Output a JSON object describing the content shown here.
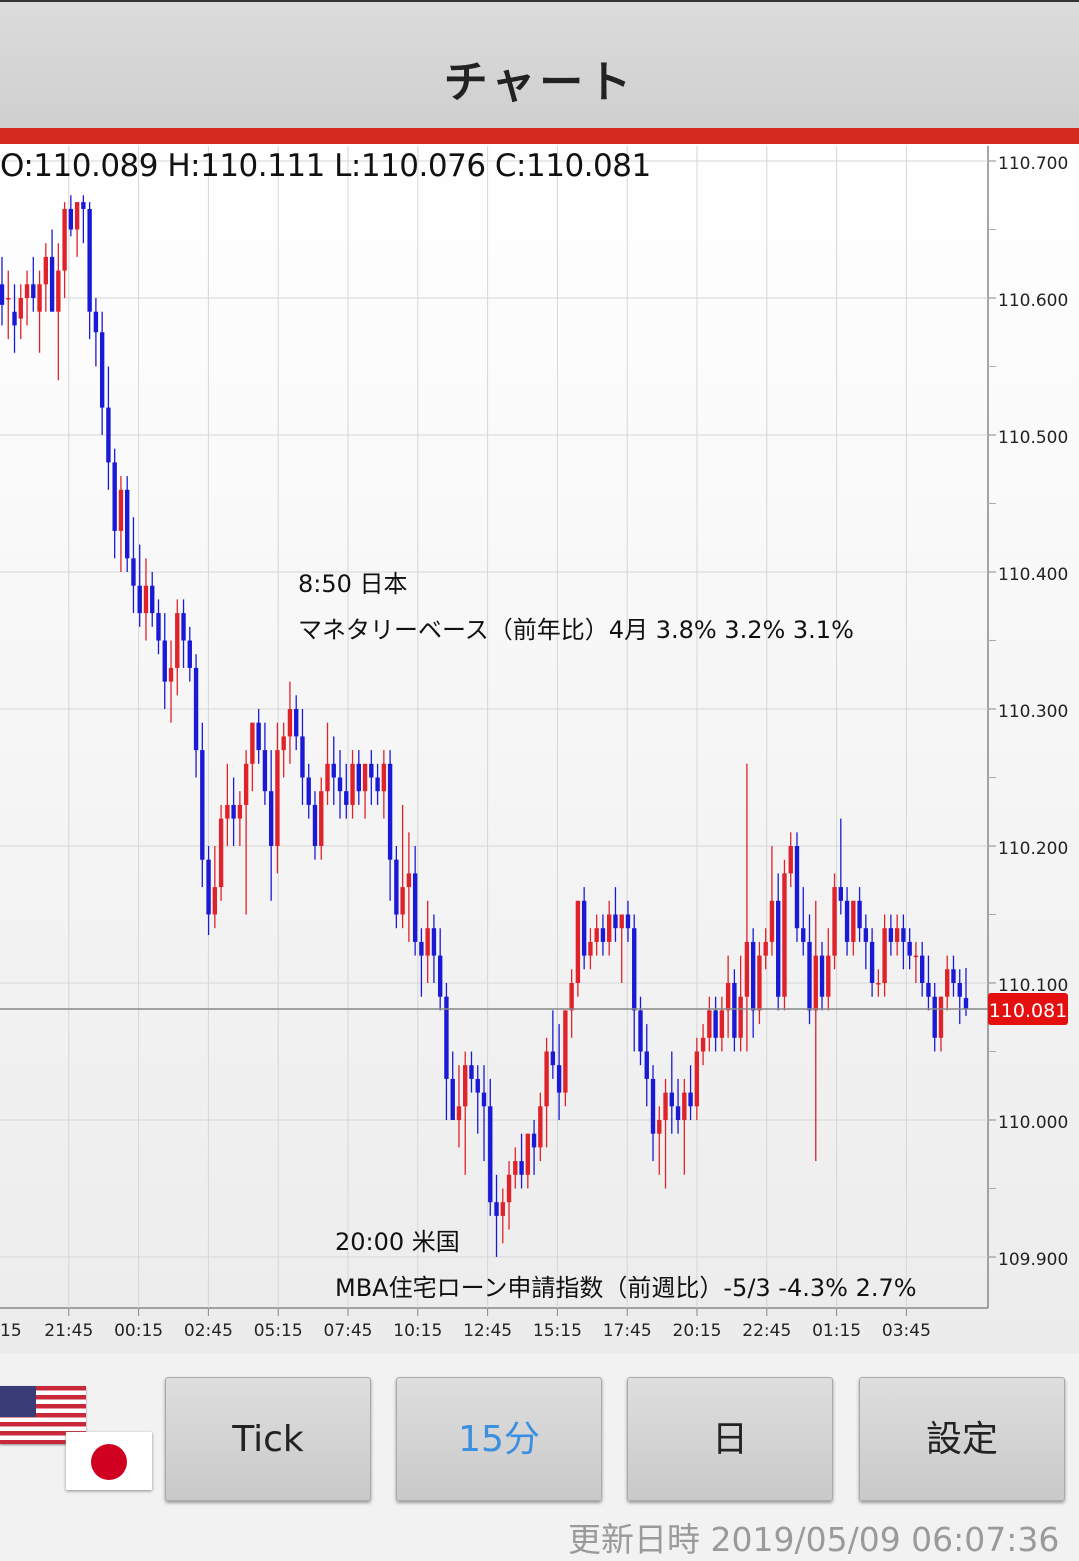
{
  "header": {
    "title": "チャート"
  },
  "ohlc": {
    "text": "O:110.089 H:110.111 L:110.076 C:110.081"
  },
  "events": [
    {
      "time": "8:50 日本",
      "desc": "マネタリーベース（前年比）4月 3.8% 3.2% 3.1%"
    },
    {
      "time": "20:00 米国",
      "desc": "MBA住宅ローン申請指数（前週比）-5/3 -4.3% 2.7%"
    }
  ],
  "current_price": "110.081",
  "buttons": {
    "tick": "Tick",
    "m15": "15分",
    "day": "日",
    "settings": "設定"
  },
  "updated": "更新日時 2019/05/09 06:07:36",
  "flags": [
    "us-flag-icon",
    "jp-flag-icon"
  ],
  "colors": {
    "up": "#e0222a",
    "down": "#1a1ad6",
    "accent": "#d42a1f",
    "active_tab": "#3b8fe0"
  },
  "chart_data": {
    "type": "candlestick",
    "y_ticks": [
      "110.700",
      "110.600",
      "110.500",
      "110.400",
      "110.300",
      "110.200",
      "110.100",
      "110.000",
      "109.900"
    ],
    "ylim": [
      109.865,
      110.71
    ],
    "x_ticks": [
      "15",
      "21:45",
      "00:15",
      "02:45",
      "05:15",
      "07:45",
      "10:15",
      "12:45",
      "15:15",
      "17:45",
      "20:15",
      "22:45",
      "01:15",
      "03:45"
    ],
    "last_price": 110.081,
    "candles": [
      {
        "o": 110.61,
        "h": 110.63,
        "l": 110.58,
        "c": 110.595
      },
      {
        "o": 110.6,
        "h": 110.62,
        "l": 110.57,
        "c": 110.6
      },
      {
        "o": 110.59,
        "h": 110.61,
        "l": 110.56,
        "c": 110.58
      },
      {
        "o": 110.585,
        "h": 110.61,
        "l": 110.57,
        "c": 110.6
      },
      {
        "o": 110.6,
        "h": 110.62,
        "l": 110.58,
        "c": 110.61
      },
      {
        "o": 110.61,
        "h": 110.63,
        "l": 110.59,
        "c": 110.6
      },
      {
        "o": 110.59,
        "h": 110.62,
        "l": 110.56,
        "c": 110.61
      },
      {
        "o": 110.61,
        "h": 110.64,
        "l": 110.59,
        "c": 110.63
      },
      {
        "o": 110.63,
        "h": 110.65,
        "l": 110.59,
        "c": 110.59
      },
      {
        "o": 110.59,
        "h": 110.64,
        "l": 110.54,
        "c": 110.62
      },
      {
        "o": 110.62,
        "h": 110.67,
        "l": 110.6,
        "c": 110.665
      },
      {
        "o": 110.665,
        "h": 110.675,
        "l": 110.645,
        "c": 110.65
      },
      {
        "o": 110.65,
        "h": 110.67,
        "l": 110.63,
        "c": 110.67
      },
      {
        "o": 110.67,
        "h": 110.675,
        "l": 110.64,
        "c": 110.665
      },
      {
        "o": 110.665,
        "h": 110.67,
        "l": 110.57,
        "c": 110.59
      },
      {
        "o": 110.59,
        "h": 110.6,
        "l": 110.55,
        "c": 110.575
      },
      {
        "o": 110.575,
        "h": 110.59,
        "l": 110.5,
        "c": 110.52
      },
      {
        "o": 110.52,
        "h": 110.55,
        "l": 110.46,
        "c": 110.48
      },
      {
        "o": 110.48,
        "h": 110.49,
        "l": 110.41,
        "c": 110.43
      },
      {
        "o": 110.43,
        "h": 110.47,
        "l": 110.4,
        "c": 110.46
      },
      {
        "o": 110.46,
        "h": 110.47,
        "l": 110.4,
        "c": 110.41
      },
      {
        "o": 110.41,
        "h": 110.44,
        "l": 110.37,
        "c": 110.39
      },
      {
        "o": 110.39,
        "h": 110.42,
        "l": 110.36,
        "c": 110.37
      },
      {
        "o": 110.37,
        "h": 110.41,
        "l": 110.35,
        "c": 110.39
      },
      {
        "o": 110.39,
        "h": 110.4,
        "l": 110.36,
        "c": 110.37
      },
      {
        "o": 110.37,
        "h": 110.38,
        "l": 110.34,
        "c": 110.35
      },
      {
        "o": 110.35,
        "h": 110.37,
        "l": 110.3,
        "c": 110.32
      },
      {
        "o": 110.32,
        "h": 110.35,
        "l": 110.29,
        "c": 110.33
      },
      {
        "o": 110.33,
        "h": 110.38,
        "l": 110.31,
        "c": 110.37
      },
      {
        "o": 110.37,
        "h": 110.38,
        "l": 110.33,
        "c": 110.35
      },
      {
        "o": 110.35,
        "h": 110.36,
        "l": 110.32,
        "c": 110.33
      },
      {
        "o": 110.33,
        "h": 110.34,
        "l": 110.25,
        "c": 110.27
      },
      {
        "o": 110.27,
        "h": 110.29,
        "l": 110.17,
        "c": 110.19
      },
      {
        "o": 110.19,
        "h": 110.2,
        "l": 110.135,
        "c": 110.15
      },
      {
        "o": 110.15,
        "h": 110.2,
        "l": 110.14,
        "c": 110.17
      },
      {
        "o": 110.17,
        "h": 110.23,
        "l": 110.16,
        "c": 110.22
      },
      {
        "o": 110.22,
        "h": 110.26,
        "l": 110.2,
        "c": 110.23
      },
      {
        "o": 110.23,
        "h": 110.25,
        "l": 110.2,
        "c": 110.22
      },
      {
        "o": 110.22,
        "h": 110.24,
        "l": 110.2,
        "c": 110.23
      },
      {
        "o": 110.23,
        "h": 110.27,
        "l": 110.15,
        "c": 110.26
      },
      {
        "o": 110.26,
        "h": 110.29,
        "l": 110.24,
        "c": 110.29
      },
      {
        "o": 110.29,
        "h": 110.3,
        "l": 110.26,
        "c": 110.27
      },
      {
        "o": 110.27,
        "h": 110.29,
        "l": 110.23,
        "c": 110.24
      },
      {
        "o": 110.24,
        "h": 110.27,
        "l": 110.16,
        "c": 110.2
      },
      {
        "o": 110.2,
        "h": 110.29,
        "l": 110.18,
        "c": 110.27
      },
      {
        "o": 110.27,
        "h": 110.29,
        "l": 110.25,
        "c": 110.28
      },
      {
        "o": 110.28,
        "h": 110.32,
        "l": 110.26,
        "c": 110.3
      },
      {
        "o": 110.3,
        "h": 110.31,
        "l": 110.27,
        "c": 110.28
      },
      {
        "o": 110.28,
        "h": 110.3,
        "l": 110.23,
        "c": 110.25
      },
      {
        "o": 110.25,
        "h": 110.26,
        "l": 110.22,
        "c": 110.23
      },
      {
        "o": 110.23,
        "h": 110.24,
        "l": 110.19,
        "c": 110.2
      },
      {
        "o": 110.2,
        "h": 110.25,
        "l": 110.19,
        "c": 110.24
      },
      {
        "o": 110.24,
        "h": 110.29,
        "l": 110.23,
        "c": 110.26
      },
      {
        "o": 110.26,
        "h": 110.28,
        "l": 110.23,
        "c": 110.25
      },
      {
        "o": 110.25,
        "h": 110.27,
        "l": 110.22,
        "c": 110.24
      },
      {
        "o": 110.24,
        "h": 110.26,
        "l": 110.22,
        "c": 110.23
      },
      {
        "o": 110.23,
        "h": 110.27,
        "l": 110.22,
        "c": 110.26
      },
      {
        "o": 110.26,
        "h": 110.27,
        "l": 110.23,
        "c": 110.24
      },
      {
        "o": 110.24,
        "h": 110.26,
        "l": 110.22,
        "c": 110.26
      },
      {
        "o": 110.26,
        "h": 110.27,
        "l": 110.23,
        "c": 110.25
      },
      {
        "o": 110.25,
        "h": 110.26,
        "l": 110.23,
        "c": 110.24
      },
      {
        "o": 110.24,
        "h": 110.27,
        "l": 110.22,
        "c": 110.26
      },
      {
        "o": 110.26,
        "h": 110.27,
        "l": 110.16,
        "c": 110.19
      },
      {
        "o": 110.19,
        "h": 110.2,
        "l": 110.14,
        "c": 110.15
      },
      {
        "o": 110.15,
        "h": 110.23,
        "l": 110.14,
        "c": 110.17
      },
      {
        "o": 110.17,
        "h": 110.21,
        "l": 110.13,
        "c": 110.18
      },
      {
        "o": 110.18,
        "h": 110.2,
        "l": 110.12,
        "c": 110.13
      },
      {
        "o": 110.13,
        "h": 110.14,
        "l": 110.09,
        "c": 110.12
      },
      {
        "o": 110.12,
        "h": 110.16,
        "l": 110.1,
        "c": 110.14
      },
      {
        "o": 110.14,
        "h": 110.15,
        "l": 110.1,
        "c": 110.12
      },
      {
        "o": 110.12,
        "h": 110.14,
        "l": 110.08,
        "c": 110.09
      },
      {
        "o": 110.09,
        "h": 110.1,
        "l": 110.0,
        "c": 110.03
      },
      {
        "o": 110.03,
        "h": 110.05,
        "l": 110.0,
        "c": 110.0
      },
      {
        "o": 110.0,
        "h": 110.04,
        "l": 109.98,
        "c": 110.01
      },
      {
        "o": 110.01,
        "h": 110.05,
        "l": 109.96,
        "c": 110.04
      },
      {
        "o": 110.04,
        "h": 110.05,
        "l": 110.02,
        "c": 110.03
      },
      {
        "o": 110.03,
        "h": 110.04,
        "l": 109.99,
        "c": 110.02
      },
      {
        "o": 110.02,
        "h": 110.04,
        "l": 109.97,
        "c": 110.01
      },
      {
        "o": 110.01,
        "h": 110.03,
        "l": 109.93,
        "c": 109.94
      },
      {
        "o": 109.94,
        "h": 109.96,
        "l": 109.9,
        "c": 109.93
      },
      {
        "o": 109.93,
        "h": 109.95,
        "l": 109.91,
        "c": 109.94
      },
      {
        "o": 109.94,
        "h": 109.97,
        "l": 109.92,
        "c": 109.96
      },
      {
        "o": 109.96,
        "h": 109.98,
        "l": 109.95,
        "c": 109.97
      },
      {
        "o": 109.97,
        "h": 109.99,
        "l": 109.95,
        "c": 109.96
      },
      {
        "o": 109.96,
        "h": 109.99,
        "l": 109.95,
        "c": 109.99
      },
      {
        "o": 109.99,
        "h": 110.0,
        "l": 109.96,
        "c": 109.98
      },
      {
        "o": 109.98,
        "h": 110.02,
        "l": 109.97,
        "c": 110.01
      },
      {
        "o": 110.01,
        "h": 110.06,
        "l": 109.98,
        "c": 110.05
      },
      {
        "o": 110.05,
        "h": 110.08,
        "l": 110.03,
        "c": 110.04
      },
      {
        "o": 110.04,
        "h": 110.07,
        "l": 110.0,
        "c": 110.02
      },
      {
        "o": 110.02,
        "h": 110.08,
        "l": 110.01,
        "c": 110.08
      },
      {
        "o": 110.08,
        "h": 110.11,
        "l": 110.06,
        "c": 110.1
      },
      {
        "o": 110.1,
        "h": 110.16,
        "l": 110.09,
        "c": 110.16
      },
      {
        "o": 110.16,
        "h": 110.17,
        "l": 110.11,
        "c": 110.12
      },
      {
        "o": 110.12,
        "h": 110.14,
        "l": 110.11,
        "c": 110.13
      },
      {
        "o": 110.13,
        "h": 110.15,
        "l": 110.12,
        "c": 110.14
      },
      {
        "o": 110.14,
        "h": 110.15,
        "l": 110.12,
        "c": 110.13
      },
      {
        "o": 110.13,
        "h": 110.16,
        "l": 110.12,
        "c": 110.15
      },
      {
        "o": 110.15,
        "h": 110.17,
        "l": 110.13,
        "c": 110.14
      },
      {
        "o": 110.14,
        "h": 110.15,
        "l": 110.1,
        "c": 110.15
      },
      {
        "o": 110.15,
        "h": 110.16,
        "l": 110.13,
        "c": 110.14
      },
      {
        "o": 110.14,
        "h": 110.15,
        "l": 110.05,
        "c": 110.08
      },
      {
        "o": 110.08,
        "h": 110.09,
        "l": 110.04,
        "c": 110.05
      },
      {
        "o": 110.05,
        "h": 110.07,
        "l": 110.01,
        "c": 110.03
      },
      {
        "o": 110.03,
        "h": 110.04,
        "l": 109.97,
        "c": 109.99
      },
      {
        "o": 109.99,
        "h": 110.01,
        "l": 109.96,
        "c": 110.0
      },
      {
        "o": 110.0,
        "h": 110.03,
        "l": 109.95,
        "c": 110.02
      },
      {
        "o": 110.02,
        "h": 110.05,
        "l": 109.99,
        "c": 110.01
      },
      {
        "o": 110.01,
        "h": 110.03,
        "l": 109.99,
        "c": 110.0
      },
      {
        "o": 110.0,
        "h": 110.03,
        "l": 109.96,
        "c": 110.02
      },
      {
        "o": 110.02,
        "h": 110.04,
        "l": 110.0,
        "c": 110.01
      },
      {
        "o": 110.01,
        "h": 110.06,
        "l": 110.0,
        "c": 110.05
      },
      {
        "o": 110.05,
        "h": 110.07,
        "l": 110.04,
        "c": 110.06
      },
      {
        "o": 110.06,
        "h": 110.09,
        "l": 110.05,
        "c": 110.08
      },
      {
        "o": 110.08,
        "h": 110.09,
        "l": 110.05,
        "c": 110.06
      },
      {
        "o": 110.06,
        "h": 110.09,
        "l": 110.05,
        "c": 110.08
      },
      {
        "o": 110.08,
        "h": 110.12,
        "l": 110.06,
        "c": 110.1
      },
      {
        "o": 110.1,
        "h": 110.11,
        "l": 110.05,
        "c": 110.06
      },
      {
        "o": 110.06,
        "h": 110.12,
        "l": 110.05,
        "c": 110.09
      },
      {
        "o": 110.09,
        "h": 110.26,
        "l": 110.05,
        "c": 110.13
      },
      {
        "o": 110.13,
        "h": 110.14,
        "l": 110.06,
        "c": 110.08
      },
      {
        "o": 110.08,
        "h": 110.13,
        "l": 110.07,
        "c": 110.12
      },
      {
        "o": 110.12,
        "h": 110.14,
        "l": 110.11,
        "c": 110.13
      },
      {
        "o": 110.13,
        "h": 110.2,
        "l": 110.12,
        "c": 110.16
      },
      {
        "o": 110.16,
        "h": 110.18,
        "l": 110.08,
        "c": 110.09
      },
      {
        "o": 110.09,
        "h": 110.19,
        "l": 110.08,
        "c": 110.18
      },
      {
        "o": 110.18,
        "h": 110.21,
        "l": 110.17,
        "c": 110.2
      },
      {
        "o": 110.2,
        "h": 110.21,
        "l": 110.13,
        "c": 110.14
      },
      {
        "o": 110.14,
        "h": 110.17,
        "l": 110.12,
        "c": 110.13
      },
      {
        "o": 110.13,
        "h": 110.15,
        "l": 110.07,
        "c": 110.08
      },
      {
        "o": 110.08,
        "h": 110.16,
        "l": 109.97,
        "c": 110.12
      },
      {
        "o": 110.12,
        "h": 110.13,
        "l": 110.08,
        "c": 110.09
      },
      {
        "o": 110.09,
        "h": 110.14,
        "l": 110.08,
        "c": 110.12
      },
      {
        "o": 110.12,
        "h": 110.18,
        "l": 110.11,
        "c": 110.17
      },
      {
        "o": 110.17,
        "h": 110.22,
        "l": 110.15,
        "c": 110.16
      },
      {
        "o": 110.16,
        "h": 110.17,
        "l": 110.12,
        "c": 110.13
      },
      {
        "o": 110.13,
        "h": 110.16,
        "l": 110.12,
        "c": 110.16
      },
      {
        "o": 110.16,
        "h": 110.17,
        "l": 110.13,
        "c": 110.14
      },
      {
        "o": 110.14,
        "h": 110.15,
        "l": 110.11,
        "c": 110.13
      },
      {
        "o": 110.13,
        "h": 110.14,
        "l": 110.09,
        "c": 110.1
      },
      {
        "o": 110.1,
        "h": 110.11,
        "l": 110.09,
        "c": 110.1
      },
      {
        "o": 110.1,
        "h": 110.15,
        "l": 110.09,
        "c": 110.14
      },
      {
        "o": 110.14,
        "h": 110.15,
        "l": 110.12,
        "c": 110.13
      },
      {
        "o": 110.13,
        "h": 110.15,
        "l": 110.12,
        "c": 110.14
      },
      {
        "o": 110.14,
        "h": 110.15,
        "l": 110.11,
        "c": 110.13
      },
      {
        "o": 110.13,
        "h": 110.14,
        "l": 110.11,
        "c": 110.12
      },
      {
        "o": 110.12,
        "h": 110.13,
        "l": 110.1,
        "c": 110.12
      },
      {
        "o": 110.12,
        "h": 110.13,
        "l": 110.09,
        "c": 110.1
      },
      {
        "o": 110.1,
        "h": 110.12,
        "l": 110.08,
        "c": 110.09
      },
      {
        "o": 110.09,
        "h": 110.1,
        "l": 110.05,
        "c": 110.06
      },
      {
        "o": 110.06,
        "h": 110.09,
        "l": 110.05,
        "c": 110.09
      },
      {
        "o": 110.09,
        "h": 110.12,
        "l": 110.08,
        "c": 110.11
      },
      {
        "o": 110.11,
        "h": 110.12,
        "l": 110.09,
        "c": 110.1
      },
      {
        "o": 110.1,
        "h": 110.11,
        "l": 110.07,
        "c": 110.09
      },
      {
        "o": 110.089,
        "h": 110.111,
        "l": 110.076,
        "c": 110.081
      }
    ]
  }
}
